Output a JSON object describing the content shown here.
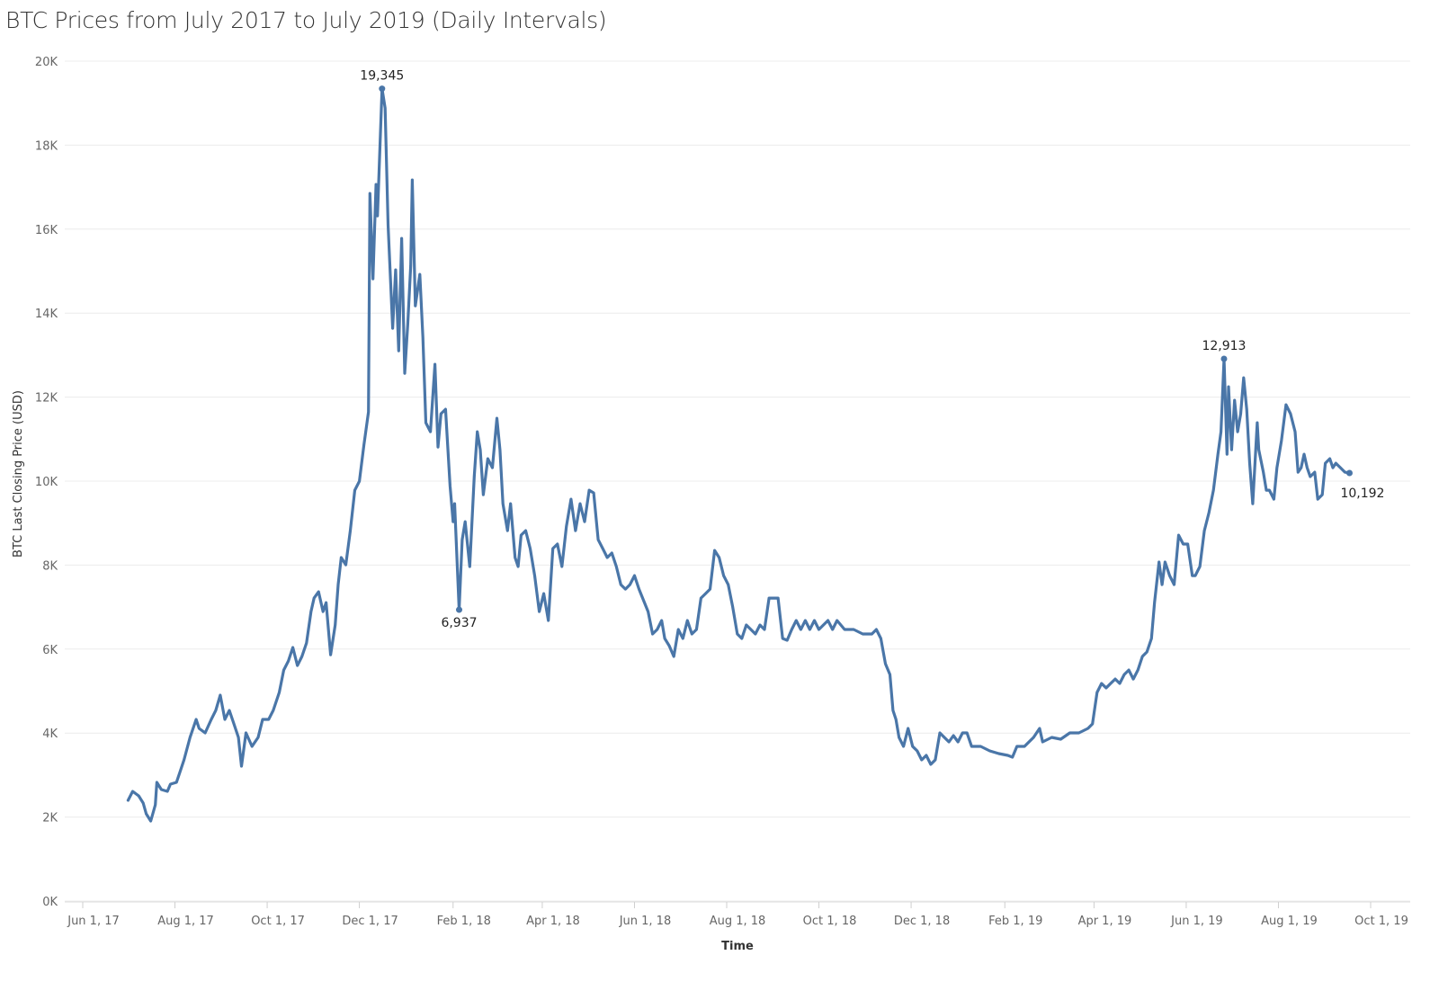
{
  "chart_data": {
    "type": "line",
    "title": "BTC Prices from July 2017 to July 2019 (Daily Intervals)",
    "xlabel": "Time",
    "ylabel": "BTC Last Closing Price (USD)",
    "x_unit": "days since 2017-06-01",
    "xlim": [
      -10,
      875
    ],
    "ylim": [
      0,
      20000
    ],
    "grid": true,
    "y_ticks": [
      {
        "value": 0,
        "label": "0K"
      },
      {
        "value": 2000,
        "label": "2K"
      },
      {
        "value": 4000,
        "label": "4K"
      },
      {
        "value": 6000,
        "label": "6K"
      },
      {
        "value": 8000,
        "label": "8K"
      },
      {
        "value": 10000,
        "label": "10K"
      },
      {
        "value": 12000,
        "label": "12K"
      },
      {
        "value": 14000,
        "label": "14K"
      },
      {
        "value": 16000,
        "label": "16K"
      },
      {
        "value": 18000,
        "label": "18K"
      },
      {
        "value": 20000,
        "label": "20K"
      }
    ],
    "x_ticks": [
      {
        "value": 0,
        "label": "Jun 1, 17"
      },
      {
        "value": 61,
        "label": "Aug 1, 17"
      },
      {
        "value": 122,
        "label": "Oct 1, 17"
      },
      {
        "value": 183,
        "label": "Dec 1, 17"
      },
      {
        "value": 245,
        "label": "Feb 1, 18"
      },
      {
        "value": 304,
        "label": "Apr 1, 18"
      },
      {
        "value": 365,
        "label": "Jun 1, 18"
      },
      {
        "value": 426,
        "label": "Aug 1, 18"
      },
      {
        "value": 487,
        "label": "Oct 1, 18"
      },
      {
        "value": 548,
        "label": "Dec 1, 18"
      },
      {
        "value": 610,
        "label": "Feb 1, 19"
      },
      {
        "value": 669,
        "label": "Apr 1, 19"
      },
      {
        "value": 730,
        "label": "Jun 1, 19"
      },
      {
        "value": 791,
        "label": "Aug 1, 19"
      },
      {
        "value": 852,
        "label": "Oct 1, 19"
      }
    ],
    "series": [
      {
        "name": "BTC Last Closing Price",
        "color": "#4a76a8",
        "x": [
          30,
          33,
          37,
          40,
          42,
          45,
          48,
          49,
          52,
          56,
          58,
          62,
          64,
          67,
          71,
          75,
          77,
          81,
          85,
          88,
          91,
          94,
          97,
          100,
          103,
          105,
          108,
          112,
          116,
          119,
          123,
          126,
          130,
          133,
          136,
          139,
          142,
          145,
          148,
          151,
          153,
          156,
          159,
          161,
          164,
          167,
          169,
          171,
          174,
          177,
          180,
          183,
          186,
          189,
          190,
          192,
          194,
          195,
          198,
          200,
          202,
          205,
          207,
          209,
          211,
          213,
          215,
          217,
          218,
          220,
          223,
          225,
          227,
          230,
          233,
          235,
          237,
          240,
          243,
          245,
          246,
          249,
          251,
          253,
          256,
          259,
          261,
          263,
          265,
          268,
          271,
          274,
          276,
          278,
          281,
          283,
          286,
          288,
          290,
          293,
          296,
          299,
          302,
          305,
          308,
          311,
          314,
          317,
          320,
          323,
          326,
          329,
          332,
          335,
          338,
          341,
          344,
          347,
          350,
          353,
          356,
          359,
          362,
          365,
          368,
          374,
          377,
          380,
          383,
          385,
          388,
          391,
          394,
          397,
          400,
          403,
          406,
          409,
          412,
          415,
          418,
          421,
          424,
          427,
          430,
          433,
          436,
          439,
          442,
          445,
          448,
          451,
          454,
          457,
          460,
          463,
          466,
          469,
          472,
          475,
          478,
          481,
          484,
          487,
          493,
          496,
          499,
          504,
          510,
          516,
          522,
          525,
          528,
          531,
          534,
          536,
          538,
          540,
          543,
          546,
          549,
          552,
          555,
          558,
          561,
          564,
          567,
          570,
          573,
          576,
          579,
          582,
          585,
          588,
          591,
          594,
          600,
          606,
          612,
          615,
          618,
          623,
          629,
          633,
          635,
          641,
          647,
          653,
          659,
          665,
          668,
          671,
          674,
          677,
          680,
          683,
          686,
          689,
          692,
          695,
          698,
          701,
          704,
          707,
          709,
          712,
          714,
          716,
          719,
          722,
          725,
          728,
          731,
          734,
          736,
          739,
          742,
          745,
          748,
          751,
          753,
          755,
          757,
          758,
          760,
          762,
          764,
          766,
          768,
          770,
          772,
          774,
          777,
          778,
          781,
          783,
          785,
          788,
          790,
          793,
          796,
          799,
          802,
          804,
          806,
          808,
          810,
          812,
          815,
          817,
          820,
          822,
          825,
          827,
          829,
          832,
          835,
          838
        ],
        "y": [
          2398,
          2612,
          2505,
          2334,
          2077,
          1905,
          2291,
          2826,
          2655,
          2612,
          2783,
          2826,
          3040,
          3361,
          3897,
          4325,
          4111,
          4004,
          4325,
          4539,
          4903,
          4325,
          4539,
          4218,
          3897,
          3212,
          4004,
          3683,
          3897,
          4325,
          4325,
          4539,
          4967,
          5502,
          5716,
          6038,
          5609,
          5824,
          6145,
          6894,
          7215,
          7365,
          6894,
          7108,
          5866,
          6573,
          7536,
          8179,
          8007,
          8821,
          9784,
          9998,
          10855,
          11647,
          16850,
          14816,
          17064,
          16314,
          19345,
          18884,
          16100,
          13638,
          15030,
          13103,
          15779,
          12568,
          13745,
          15137,
          17171,
          14173,
          14923,
          13424,
          11390,
          11176,
          12782,
          10812,
          11604,
          11711,
          9891,
          9035,
          9463,
          6937,
          8607,
          9035,
          7965,
          10106,
          11176,
          10748,
          9677,
          10534,
          10320,
          11497,
          10748,
          9463,
          8821,
          9463,
          8179,
          7965,
          8714,
          8821,
          8393,
          7750,
          6894,
          7322,
          6680,
          8393,
          8500,
          7965,
          8928,
          9570,
          8821,
          9463,
          9035,
          9784,
          9720,
          8607,
          8393,
          8179,
          8286,
          7965,
          7536,
          7429,
          7536,
          7750,
          7429,
          6894,
          6359,
          6466,
          6680,
          6252,
          6080,
          5824,
          6466,
          6252,
          6680,
          6359,
          6466,
          7215,
          7322,
          7429,
          8350,
          8179,
          7750,
          7536,
          7001,
          6359,
          6252,
          6573,
          6466,
          6359,
          6573,
          6466,
          7215,
          7215,
          7215,
          6252,
          6209,
          6466,
          6680,
          6466,
          6680,
          6466,
          6680,
          6466,
          6680,
          6466,
          6680,
          6466,
          6466,
          6359,
          6359,
          6466,
          6252,
          5652,
          5395,
          4539,
          4325,
          3897,
          3683,
          4111,
          3683,
          3575,
          3361,
          3468,
          3254,
          3361,
          4004,
          3897,
          3790,
          3939,
          3790,
          4004,
          4004,
          3683,
          3683,
          3683,
          3575,
          3511,
          3468,
          3426,
          3683,
          3683,
          3897,
          4111,
          3790,
          3897,
          3854,
          4004,
          4004,
          4111,
          4218,
          4967,
          5181,
          5074,
          5181,
          5288,
          5181,
          5395,
          5502,
          5288,
          5502,
          5824,
          5931,
          6252,
          7108,
          8072,
          7536,
          8072,
          7750,
          7536,
          8714,
          8500,
          8500,
          7750,
          7750,
          7965,
          8821,
          9249,
          9784,
          10641,
          11176,
          12913,
          10641,
          12247,
          10748,
          11925,
          11176,
          11604,
          12461,
          11711,
          10427,
          9463,
          11390,
          10748,
          10212,
          9784,
          9784,
          9570,
          10320,
          10962,
          11818,
          11604,
          11176,
          10212,
          10320,
          10641,
          10320,
          10106,
          10212,
          9570,
          9677,
          10427,
          10534,
          10320,
          10427,
          10320,
          10212,
          10192
        ]
      }
    ],
    "annotations": [
      {
        "x": 198,
        "y": 19345,
        "label": "19,345",
        "position": "above"
      },
      {
        "x": 249,
        "y": 6937,
        "label": "6,937",
        "position": "below"
      },
      {
        "x": 755,
        "y": 12913,
        "label": "12,913",
        "position": "above"
      },
      {
        "x": 838,
        "y": 10192,
        "label": "10,192",
        "position": "below-right"
      }
    ]
  }
}
